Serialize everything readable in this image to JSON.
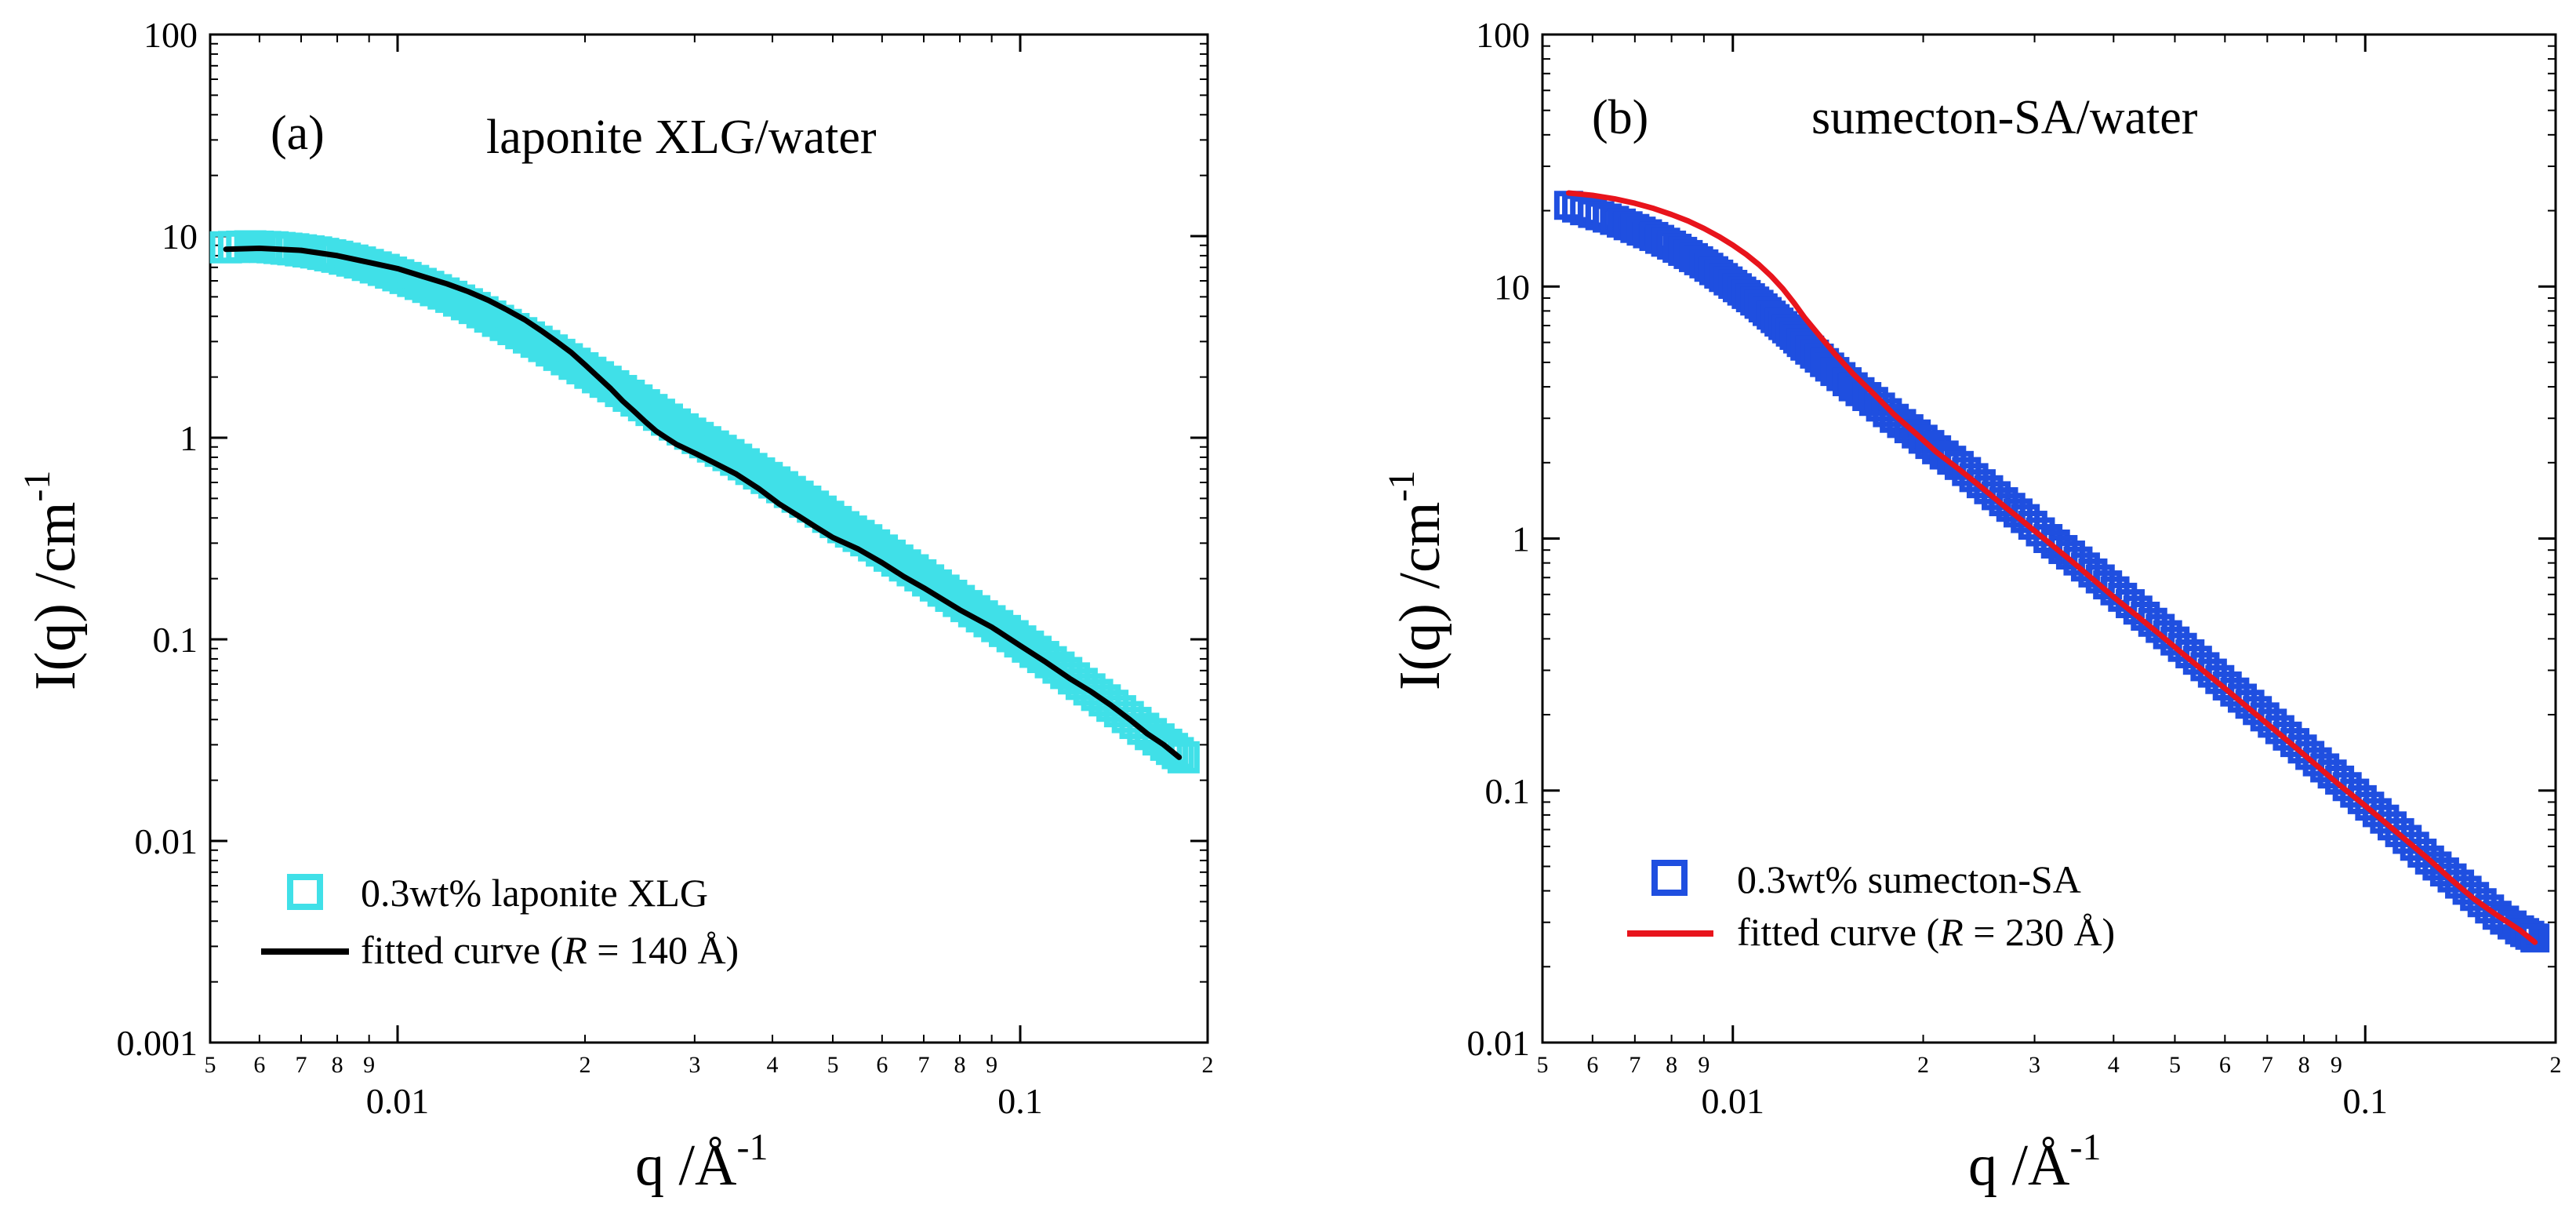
{
  "chart_data": [
    {
      "type": "scatter",
      "panel_label": "(a)",
      "title": "laponite XLG/water",
      "xlabel": "q /Å",
      "xlabel_exponent": "-1",
      "ylabel": "I(q) /cm",
      "ylabel_exponent": "-1",
      "xscale": "log",
      "yscale": "log",
      "xlim": [
        0.005,
        0.2
      ],
      "ylim": [
        0.001,
        100
      ],
      "x_major_ticks": [
        {
          "value": 0.01,
          "label": "0.01"
        },
        {
          "value": 0.1,
          "label": "0.1"
        }
      ],
      "x_minor_ticks": [
        {
          "value": 0.005,
          "label": "5"
        },
        {
          "value": 0.006,
          "label": "6"
        },
        {
          "value": 0.007,
          "label": "7"
        },
        {
          "value": 0.008,
          "label": "8"
        },
        {
          "value": 0.009,
          "label": "9"
        },
        {
          "value": 0.02,
          "label": "2"
        },
        {
          "value": 0.03,
          "label": "3"
        },
        {
          "value": 0.04,
          "label": "4"
        },
        {
          "value": 0.05,
          "label": "5"
        },
        {
          "value": 0.06,
          "label": "6"
        },
        {
          "value": 0.07,
          "label": "7"
        },
        {
          "value": 0.08,
          "label": "8"
        },
        {
          "value": 0.09,
          "label": "9"
        },
        {
          "value": 0.2,
          "label": "2"
        }
      ],
      "y_major_ticks": [
        {
          "value": 0.001,
          "label": "0.001"
        },
        {
          "value": 0.01,
          "label": "0.01"
        },
        {
          "value": 0.1,
          "label": "0.1"
        },
        {
          "value": 1,
          "label": "1"
        },
        {
          "value": 10,
          "label": "10"
        },
        {
          "value": 100,
          "label": "100"
        }
      ],
      "legend_position": "bottom-left",
      "series": [
        {
          "name": "0.3wt% laponite XLG",
          "kind": "markers",
          "marker": "square",
          "color": "#40E0E8",
          "x": [
            0.0053,
            0.0058,
            0.0063,
            0.0068,
            0.0074,
            0.008,
            0.0087,
            0.0095,
            0.0103,
            0.0112,
            0.0122,
            0.0133,
            0.0145,
            0.0158,
            0.0172,
            0.0187,
            0.0204,
            0.0222,
            0.0242,
            0.0263,
            0.0287,
            0.0312,
            0.034,
            0.037,
            0.0403,
            0.0439,
            0.0478,
            0.052,
            0.0566,
            0.0617,
            0.0672,
            0.0732,
            0.0797,
            0.0868,
            0.0945,
            0.1029,
            0.112,
            0.122,
            0.1329,
            0.1447,
            0.1576,
            0.1716,
            0.183
          ],
          "y": [
            8.8,
            8.9,
            8.8,
            8.6,
            8.3,
            7.9,
            7.4,
            6.8,
            6.2,
            5.6,
            5.0,
            4.4,
            3.8,
            3.3,
            2.85,
            2.45,
            2.1,
            1.8,
            1.53,
            1.3,
            1.1,
            0.95,
            0.82,
            0.7,
            0.6,
            0.51,
            0.43,
            0.36,
            0.31,
            0.26,
            0.22,
            0.185,
            0.155,
            0.13,
            0.11,
            0.092,
            0.077,
            0.064,
            0.053,
            0.044,
            0.036,
            0.03,
            0.026
          ]
        },
        {
          "name": "fitted curve (R = 140 Å)",
          "legend_parts": [
            "fitted curve (",
            "R",
            " = 140 Å)"
          ],
          "kind": "line",
          "color": "#000000",
          "x": [
            0.0053,
            0.006,
            0.007,
            0.008,
            0.009,
            0.01,
            0.011,
            0.012,
            0.013,
            0.014,
            0.015,
            0.016,
            0.017,
            0.018,
            0.019,
            0.02,
            0.021,
            0.022,
            0.023,
            0.024,
            0.025,
            0.026,
            0.027,
            0.028,
            0.03,
            0.032,
            0.035,
            0.038,
            0.041,
            0.044,
            0.047,
            0.05,
            0.055,
            0.06,
            0.065,
            0.07,
            0.08,
            0.09,
            0.1,
            0.11,
            0.12,
            0.13,
            0.14,
            0.15,
            0.16,
            0.17,
            0.18
          ],
          "y": [
            8.6,
            8.7,
            8.5,
            8.0,
            7.4,
            6.9,
            6.3,
            5.8,
            5.3,
            4.8,
            4.3,
            3.85,
            3.4,
            3.0,
            2.65,
            2.3,
            2.0,
            1.75,
            1.52,
            1.35,
            1.2,
            1.08,
            1.0,
            0.93,
            0.84,
            0.76,
            0.66,
            0.56,
            0.47,
            0.41,
            0.36,
            0.32,
            0.28,
            0.24,
            0.205,
            0.18,
            0.14,
            0.115,
            0.093,
            0.077,
            0.064,
            0.055,
            0.047,
            0.04,
            0.034,
            0.03,
            0.026
          ]
        }
      ]
    },
    {
      "type": "scatter",
      "panel_label": "(b)",
      "title": "sumecton-SA/water",
      "xlabel": "q /Å",
      "xlabel_exponent": "-1",
      "ylabel": "I(q)  /cm",
      "ylabel_exponent": "-1",
      "xscale": "log",
      "yscale": "log",
      "xlim": [
        0.005,
        0.2
      ],
      "ylim": [
        0.01,
        100
      ],
      "x_major_ticks": [
        {
          "value": 0.01,
          "label": "0.01"
        },
        {
          "value": 0.1,
          "label": "0.1"
        }
      ],
      "x_minor_ticks": [
        {
          "value": 0.005,
          "label": "5"
        },
        {
          "value": 0.006,
          "label": "6"
        },
        {
          "value": 0.007,
          "label": "7"
        },
        {
          "value": 0.008,
          "label": "8"
        },
        {
          "value": 0.009,
          "label": "9"
        },
        {
          "value": 0.02,
          "label": "2"
        },
        {
          "value": 0.03,
          "label": "3"
        },
        {
          "value": 0.04,
          "label": "4"
        },
        {
          "value": 0.05,
          "label": "5"
        },
        {
          "value": 0.06,
          "label": "6"
        },
        {
          "value": 0.07,
          "label": "7"
        },
        {
          "value": 0.08,
          "label": "8"
        },
        {
          "value": 0.09,
          "label": "9"
        },
        {
          "value": 0.2,
          "label": "2"
        }
      ],
      "y_major_ticks": [
        {
          "value": 0.01,
          "label": "0.01"
        },
        {
          "value": 0.1,
          "label": "0.1"
        },
        {
          "value": 1,
          "label": "1"
        },
        {
          "value": 10,
          "label": "10"
        },
        {
          "value": 100,
          "label": "100"
        }
      ],
      "legend_position": "bottom-left",
      "series": [
        {
          "name": "0.3wt% sumecton-SA",
          "kind": "markers",
          "marker": "square",
          "color": "#1F4FE0",
          "x": [
            0.0055,
            0.006,
            0.0065,
            0.007,
            0.0075,
            0.008,
            0.0085,
            0.009,
            0.0095,
            0.01,
            0.0105,
            0.011,
            0.0115,
            0.012,
            0.0125,
            0.013,
            0.0137,
            0.0145,
            0.0155,
            0.0167,
            0.018,
            0.0195,
            0.021,
            0.0228,
            0.0247,
            0.0268,
            0.029,
            0.0315,
            0.0342,
            0.0371,
            0.0402,
            0.0437,
            0.0474,
            0.0514,
            0.0558,
            0.0605,
            0.0657,
            0.0713,
            0.0774,
            0.084,
            0.0911,
            0.0989,
            0.1073,
            0.1165,
            0.1264,
            0.1372,
            0.1489,
            0.1616,
            0.1754,
            0.1855
          ],
          "y": [
            21.0,
            19.5,
            18.3,
            17.0,
            15.8,
            14.6,
            13.4,
            12.3,
            11.2,
            10.2,
            9.3,
            8.5,
            7.7,
            7.0,
            6.4,
            5.8,
            5.2,
            4.6,
            4.0,
            3.5,
            3.0,
            2.6,
            2.25,
            1.95,
            1.65,
            1.4,
            1.2,
            1.0,
            0.86,
            0.73,
            0.62,
            0.52,
            0.44,
            0.37,
            0.31,
            0.26,
            0.22,
            0.185,
            0.155,
            0.13,
            0.11,
            0.092,
            0.077,
            0.064,
            0.053,
            0.045,
            0.038,
            0.032,
            0.028,
            0.026
          ]
        },
        {
          "name": "fitted curve (R = 230 Å)",
          "legend_parts": [
            "fitted curve (",
            "R",
            " = 230 Å)"
          ],
          "kind": "line",
          "color": "#E8141C",
          "x": [
            0.0055,
            0.006,
            0.0065,
            0.007,
            0.0075,
            0.008,
            0.0085,
            0.009,
            0.0095,
            0.01,
            0.0105,
            0.011,
            0.0115,
            0.012,
            0.0125,
            0.013,
            0.0137,
            0.0145,
            0.0155,
            0.0167,
            0.018,
            0.0195,
            0.021,
            0.0228,
            0.0247,
            0.0268,
            0.029,
            0.0315,
            0.0342,
            0.0371,
            0.0402,
            0.0437,
            0.0474,
            0.0514,
            0.0558,
            0.0605,
            0.0657,
            0.0713,
            0.0774,
            0.084,
            0.0911,
            0.0989,
            0.1073,
            0.1165,
            0.1264,
            0.1372,
            0.1489,
            0.1616,
            0.1754,
            0.1855
          ],
          "y": [
            23.5,
            23.0,
            22.3,
            21.4,
            20.4,
            19.3,
            18.2,
            17.0,
            15.8,
            14.6,
            13.4,
            12.2,
            11.0,
            9.8,
            8.6,
            7.5,
            6.4,
            5.4,
            4.5,
            3.75,
            3.1,
            2.6,
            2.2,
            1.88,
            1.6,
            1.35,
            1.15,
            0.97,
            0.82,
            0.69,
            0.58,
            0.49,
            0.415,
            0.35,
            0.295,
            0.25,
            0.21,
            0.177,
            0.149,
            0.125,
            0.105,
            0.089,
            0.075,
            0.063,
            0.053,
            0.044,
            0.037,
            0.032,
            0.028,
            0.025
          ]
        }
      ]
    }
  ]
}
